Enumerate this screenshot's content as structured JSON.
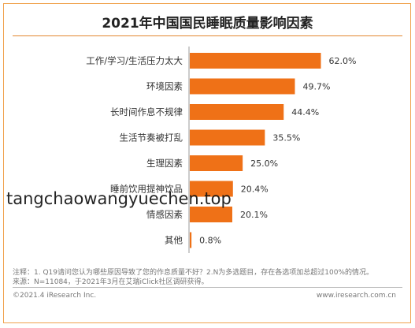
{
  "colors": {
    "bar": "#ef7117",
    "border": "#f0a24d"
  },
  "chart_data": {
    "type": "bar",
    "orientation": "horizontal",
    "title": "2021年中国国民睡眠质量影响因素",
    "categories": [
      "工作/学习/生活压力太大",
      "环境因素",
      "长时间作息不规律",
      "生活节奏被打乱",
      "生理因素",
      "睡前饮用提神饮品",
      "情感因素",
      "其他"
    ],
    "values": [
      62.0,
      49.7,
      44.4,
      35.5,
      25.0,
      20.4,
      20.1,
      0.8
    ],
    "value_labels": [
      "62.0%",
      "49.7%",
      "44.4%",
      "35.5%",
      "25.0%",
      "20.4%",
      "20.1%",
      "0.8%"
    ],
    "xlim": [
      0,
      70
    ],
    "grid": false,
    "legend": "none"
  },
  "notes": {
    "line1": "注释：1. Q19请问您认为哪些原因导致了您的作息质量不好？2.N为多选题目，存在各选项加总超过100%的情况。",
    "line2": "来源：N=11084，于2021年3月在艾瑞iClick社区调研获得。"
  },
  "footer": {
    "copyright": "©2021.4 iResearch Inc.",
    "site": "www.iresearch.com.cn"
  },
  "watermark": "tangchaowangyuechen.top"
}
